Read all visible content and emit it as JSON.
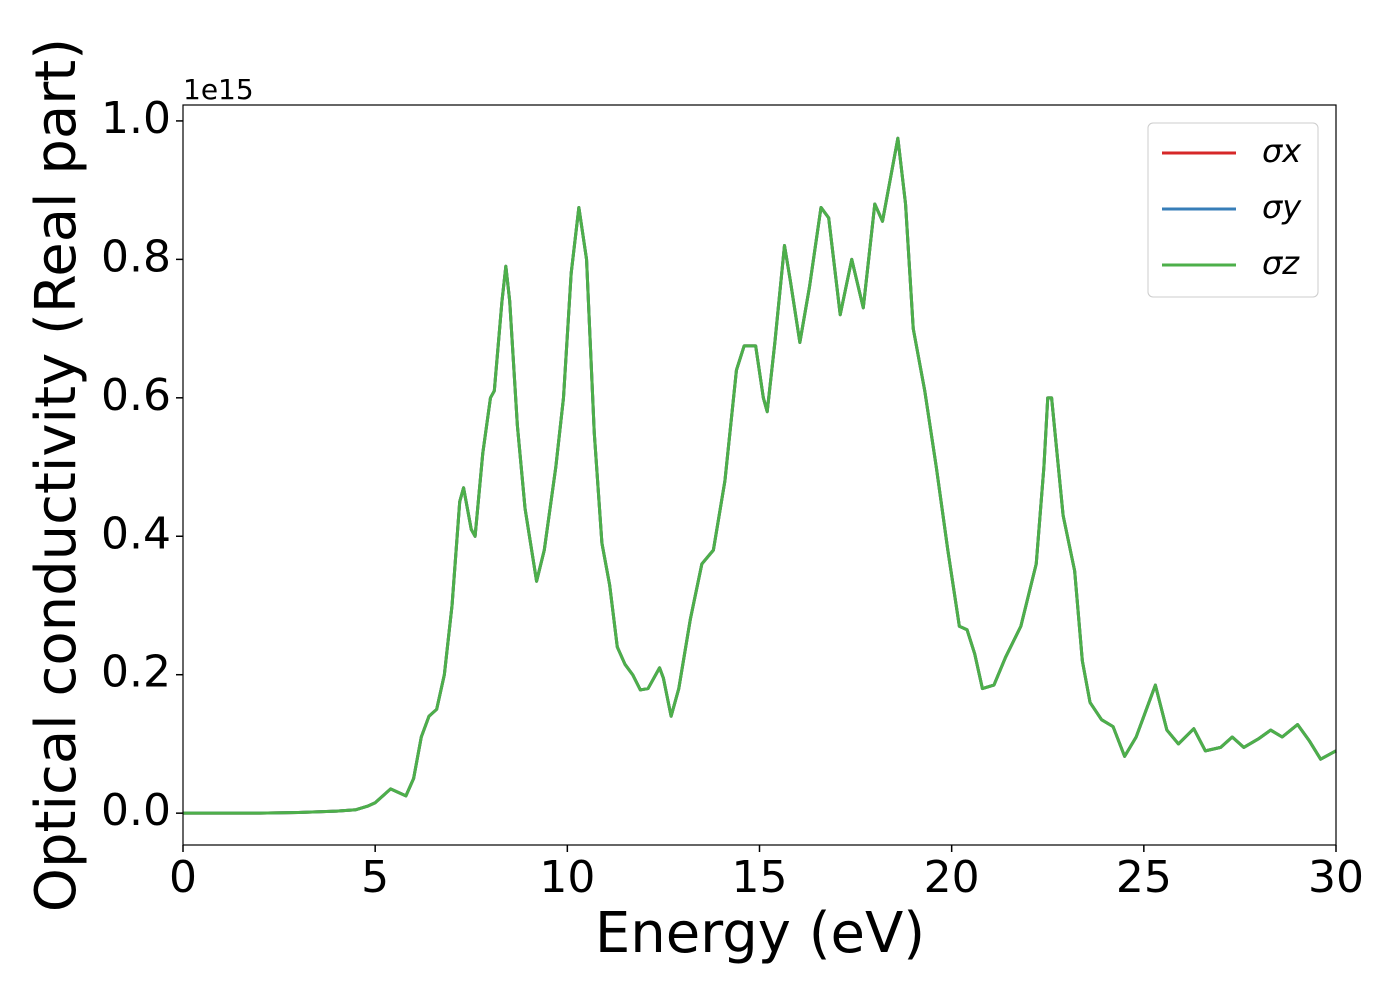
{
  "chart_data": {
    "type": "line",
    "xlabel": "Energy (eV)",
    "ylabel": "Optical conductivity (Real part)",
    "offset_label": "1e15",
    "xlim": [
      0,
      30
    ],
    "xticks": [
      0,
      5,
      10,
      15,
      20,
      25,
      30
    ],
    "ylim": [
      -0.046,
      1.023
    ],
    "yticks": [
      {
        "value": 0,
        "label": "0.0"
      },
      0.2,
      0.4,
      0.6,
      0.8,
      {
        "value": 1,
        "label": "1.0"
      }
    ],
    "legend": "upper right",
    "x": [
      0,
      1,
      2,
      3,
      4,
      4.5,
      4.8,
      5,
      5.2,
      5.4,
      5.6,
      5.8,
      6,
      6.2,
      6.4,
      6.6,
      6.8,
      7,
      7.2,
      7.3,
      7.5,
      7.6,
      7.8,
      8,
      8.1,
      8.3,
      8.4,
      8.5,
      8.7,
      8.9,
      9.2,
      9.4,
      9.7,
      9.9,
      10.1,
      10.3,
      10.5,
      10.7,
      10.9,
      11.1,
      11.3,
      11.5,
      11.7,
      11.9,
      12.1,
      12.4,
      12.5,
      12.7,
      12.9,
      13.2,
      13.5,
      13.8,
      14.1,
      14.4,
      14.6,
      14.9,
      15.1,
      15.2,
      15.4,
      15.65,
      15.8,
      16.05,
      16.3,
      16.6,
      16.8,
      17.1,
      17.4,
      17.7,
      18,
      18.2,
      18.6,
      18.8,
      19,
      19.3,
      19.6,
      19.9,
      20.2,
      20.4,
      20.6,
      20.8,
      21.1,
      21.4,
      21.8,
      22.2,
      22.4,
      22.5,
      22.6,
      22.9,
      23.2,
      23.4,
      23.6,
      23.9,
      24.2,
      24.5,
      24.8,
      25.3,
      25.6,
      25.9,
      26.3,
      26.6,
      27,
      27.3,
      27.6,
      28,
      28.3,
      28.6,
      29,
      29.3,
      29.6,
      30
    ],
    "series": [
      {
        "name": "σx",
        "color": "#d62728",
        "values": [
          0,
          0,
          0,
          0.001,
          0.003,
          0.005,
          0.01,
          0.015,
          0.025,
          0.035,
          0.03,
          0.025,
          0.05,
          0.11,
          0.14,
          0.15,
          0.2,
          0.3,
          0.45,
          0.47,
          0.41,
          0.4,
          0.52,
          0.6,
          0.61,
          0.74,
          0.79,
          0.74,
          0.56,
          0.44,
          0.335,
          0.38,
          0.5,
          0.6,
          0.78,
          0.875,
          0.8,
          0.55,
          0.39,
          0.33,
          0.24,
          0.215,
          0.2,
          0.178,
          0.18,
          0.21,
          0.195,
          0.14,
          0.18,
          0.28,
          0.36,
          0.38,
          0.48,
          0.64,
          0.675,
          0.675,
          0.6,
          0.58,
          0.68,
          0.82,
          0.77,
          0.68,
          0.76,
          0.875,
          0.86,
          0.72,
          0.8,
          0.73,
          0.88,
          0.855,
          0.975,
          0.88,
          0.7,
          0.61,
          0.5,
          0.38,
          0.27,
          0.265,
          0.23,
          0.18,
          0.185,
          0.225,
          0.27,
          0.36,
          0.5,
          0.6,
          0.6,
          0.43,
          0.35,
          0.22,
          0.16,
          0.135,
          0.125,
          0.082,
          0.11,
          0.185,
          0.12,
          0.1,
          0.122,
          0.09,
          0.095,
          0.11,
          0.095,
          0.108,
          0.12,
          0.11,
          0.128,
          0.105,
          0.078,
          0.09
        ]
      },
      {
        "name": "σy",
        "color": "#377eb8",
        "values": [
          0,
          0,
          0,
          0.001,
          0.003,
          0.005,
          0.01,
          0.015,
          0.025,
          0.035,
          0.03,
          0.025,
          0.05,
          0.11,
          0.14,
          0.15,
          0.2,
          0.3,
          0.45,
          0.47,
          0.41,
          0.4,
          0.52,
          0.6,
          0.61,
          0.74,
          0.79,
          0.74,
          0.56,
          0.44,
          0.335,
          0.38,
          0.5,
          0.6,
          0.78,
          0.875,
          0.8,
          0.55,
          0.39,
          0.33,
          0.24,
          0.215,
          0.2,
          0.178,
          0.18,
          0.21,
          0.195,
          0.14,
          0.18,
          0.28,
          0.36,
          0.38,
          0.48,
          0.64,
          0.675,
          0.675,
          0.6,
          0.58,
          0.68,
          0.82,
          0.77,
          0.68,
          0.76,
          0.875,
          0.86,
          0.72,
          0.8,
          0.73,
          0.88,
          0.855,
          0.975,
          0.88,
          0.7,
          0.61,
          0.5,
          0.38,
          0.27,
          0.265,
          0.23,
          0.18,
          0.185,
          0.225,
          0.27,
          0.36,
          0.5,
          0.6,
          0.6,
          0.43,
          0.35,
          0.22,
          0.16,
          0.135,
          0.125,
          0.082,
          0.11,
          0.185,
          0.12,
          0.1,
          0.122,
          0.09,
          0.095,
          0.11,
          0.095,
          0.108,
          0.12,
          0.11,
          0.128,
          0.105,
          0.078,
          0.09
        ]
      },
      {
        "name": "σz",
        "color": "#4daf4a",
        "values": [
          0,
          0,
          0,
          0.001,
          0.003,
          0.005,
          0.01,
          0.015,
          0.025,
          0.035,
          0.03,
          0.025,
          0.05,
          0.11,
          0.14,
          0.15,
          0.2,
          0.3,
          0.45,
          0.47,
          0.41,
          0.4,
          0.52,
          0.6,
          0.61,
          0.74,
          0.79,
          0.74,
          0.56,
          0.44,
          0.335,
          0.38,
          0.5,
          0.6,
          0.78,
          0.875,
          0.8,
          0.55,
          0.39,
          0.33,
          0.24,
          0.215,
          0.2,
          0.178,
          0.18,
          0.21,
          0.195,
          0.14,
          0.18,
          0.28,
          0.36,
          0.38,
          0.48,
          0.64,
          0.675,
          0.675,
          0.6,
          0.58,
          0.68,
          0.82,
          0.77,
          0.68,
          0.76,
          0.875,
          0.86,
          0.72,
          0.8,
          0.73,
          0.88,
          0.855,
          0.975,
          0.88,
          0.7,
          0.61,
          0.5,
          0.38,
          0.27,
          0.265,
          0.23,
          0.18,
          0.185,
          0.225,
          0.27,
          0.36,
          0.5,
          0.6,
          0.6,
          0.43,
          0.35,
          0.22,
          0.16,
          0.135,
          0.125,
          0.082,
          0.11,
          0.185,
          0.12,
          0.1,
          0.122,
          0.09,
          0.095,
          0.11,
          0.095,
          0.108,
          0.12,
          0.11,
          0.128,
          0.105,
          0.078,
          0.09
        ]
      }
    ]
  }
}
